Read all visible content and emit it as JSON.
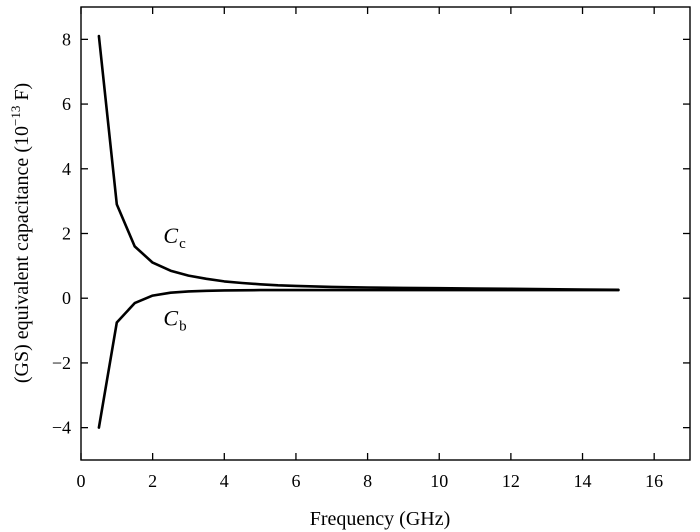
{
  "chart_data": {
    "type": "line",
    "title": "",
    "xlabel": "Frequency (GHz)",
    "ylabel": {
      "base": "(GS) equivalent capacitance (10",
      "exp": "−13",
      "unit": " F)"
    },
    "xlim": [
      0,
      17
    ],
    "ylim": [
      -5,
      9
    ],
    "xticks": [
      0,
      2,
      4,
      6,
      8,
      10,
      12,
      14,
      16
    ],
    "xtick_labels": [
      "0",
      "2",
      "4",
      "6",
      "8",
      "10",
      "12",
      "14",
      "16"
    ],
    "yticks": [
      -4,
      -2,
      0,
      2,
      4,
      6,
      8
    ],
    "ytick_labels": [
      "−4",
      "−2",
      "0",
      "2",
      "4",
      "6",
      "8"
    ],
    "grid": false,
    "series": [
      {
        "name": "Cc",
        "label_main": "C",
        "label_sub": "c",
        "x": [
          0.5,
          1.0,
          1.5,
          2.0,
          2.5,
          3.0,
          3.5,
          4.0,
          4.5,
          5.0,
          5.5,
          6.0,
          7.0,
          8.0,
          9.0,
          10.0,
          11.0,
          12.0,
          13.0,
          14.0,
          15.0
        ],
        "y": [
          8.1,
          2.9,
          1.6,
          1.1,
          0.85,
          0.7,
          0.6,
          0.52,
          0.47,
          0.43,
          0.4,
          0.38,
          0.35,
          0.33,
          0.32,
          0.31,
          0.3,
          0.29,
          0.28,
          0.27,
          0.26
        ]
      },
      {
        "name": "Cb",
        "label_main": "C",
        "label_sub": "b",
        "x": [
          0.5,
          1.0,
          1.5,
          2.0,
          2.5,
          3.0,
          3.5,
          4.0,
          5.0,
          6.0,
          7.0,
          8.0,
          9.0,
          10.0,
          11.0,
          12.0,
          13.0,
          14.0,
          15.0
        ],
        "y": [
          -4.0,
          -0.75,
          -0.15,
          0.08,
          0.17,
          0.21,
          0.23,
          0.24,
          0.25,
          0.25,
          0.25,
          0.25,
          0.25,
          0.25,
          0.25,
          0.25,
          0.25,
          0.25,
          0.25
        ]
      }
    ],
    "annotations": [
      {
        "series": "Cc",
        "x": 2.3,
        "y": 1.7
      },
      {
        "series": "Cb",
        "x": 2.3,
        "y": -0.85
      }
    ]
  }
}
